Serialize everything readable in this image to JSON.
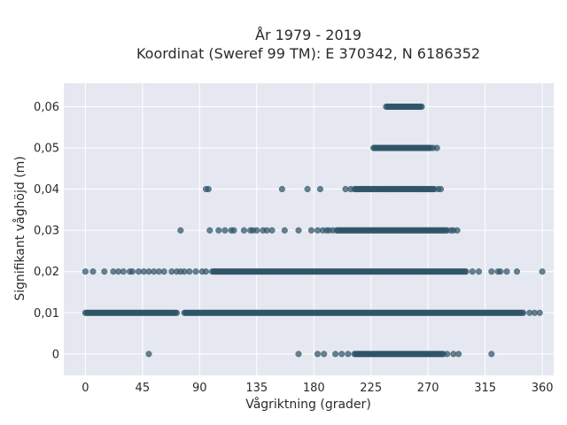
{
  "chart_data": {
    "type": "scatter",
    "title_lines": [
      "År 1979 - 2019",
      "Koordinat (Sweref 99 TM): E 370342, N 6186352"
    ],
    "xlabel": "Vågriktning (grader)",
    "ylabel": "Signifikant våghöjd (m)",
    "xlim": [
      -17,
      369
    ],
    "ylim": [
      -0.0052,
      0.0657
    ],
    "xticks": [
      0,
      45,
      90,
      135,
      180,
      225,
      270,
      315,
      360
    ],
    "yticks": [
      0,
      0.01,
      0.02,
      0.03,
      0.04,
      0.05,
      0.06
    ],
    "ytick_labels": [
      "0",
      "0,01",
      "0,02",
      "0,03",
      "0,04",
      "0,05",
      "0,06"
    ],
    "grid": true,
    "marker_color": "#2f5468",
    "plot_background": "#e5e8f0",
    "bands": [
      {
        "y": 0.06,
        "dense": [
          [
            237,
            265
          ]
        ],
        "sparse": []
      },
      {
        "y": 0.05,
        "dense": [
          [
            227,
            272
          ]
        ],
        "sparse": [
          274,
          277
        ]
      },
      {
        "y": 0.04,
        "dense": [
          [
            212,
            275
          ]
        ],
        "sparse": [
          95,
          97,
          155,
          175,
          185,
          205,
          209,
          278,
          280
        ]
      },
      {
        "y": 0.03,
        "dense": [
          [
            198,
            285
          ]
        ],
        "sparse": [
          75,
          98,
          105,
          110,
          115,
          117,
          125,
          130,
          132,
          135,
          140,
          143,
          147,
          157,
          168,
          178,
          183,
          187,
          190,
          192,
          195,
          288,
          290,
          293
        ]
      },
      {
        "y": 0.02,
        "dense": [
          [
            100,
            300
          ]
        ],
        "sparse": [
          0,
          6,
          15,
          22,
          26,
          30,
          35,
          37,
          42,
          46,
          50,
          54,
          58,
          62,
          68,
          72,
          75,
          78,
          82,
          87,
          92,
          95,
          305,
          310,
          320,
          325,
          327,
          332,
          340,
          360
        ]
      },
      {
        "y": 0.01,
        "dense": [
          [
            0,
            72
          ],
          [
            78,
            345
          ]
        ],
        "sparse": [
          350,
          354,
          358
        ]
      },
      {
        "y": 0.0,
        "dense": [
          [
            212,
            282
          ]
        ],
        "sparse": [
          50,
          168,
          183,
          188,
          197,
          202,
          207,
          285,
          290,
          294,
          320
        ]
      }
    ]
  }
}
